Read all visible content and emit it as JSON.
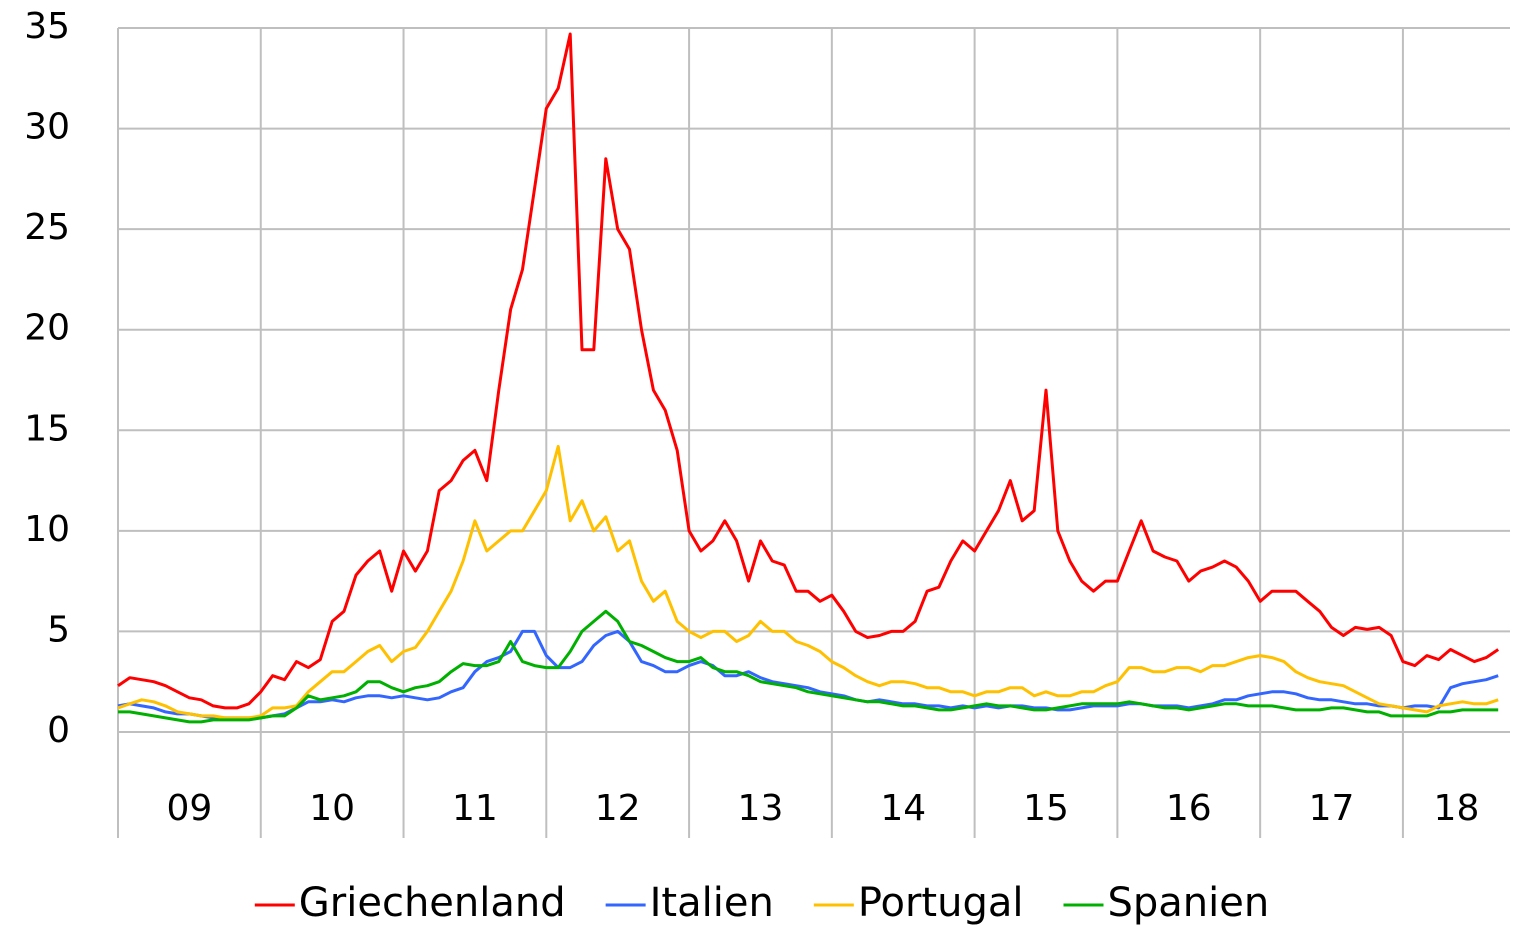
{
  "chart_data": {
    "type": "line",
    "x": [
      2009,
      2009.083,
      2009.167,
      2009.25,
      2009.333,
      2009.417,
      2009.5,
      2009.583,
      2009.667,
      2009.75,
      2009.833,
      2009.917,
      2010,
      2010.083,
      2010.167,
      2010.25,
      2010.333,
      2010.417,
      2010.5,
      2010.583,
      2010.667,
      2010.75,
      2010.833,
      2010.917,
      2011,
      2011.083,
      2011.167,
      2011.25,
      2011.333,
      2011.417,
      2011.5,
      2011.583,
      2011.667,
      2011.75,
      2011.833,
      2011.917,
      2012,
      2012.083,
      2012.167,
      2012.25,
      2012.333,
      2012.417,
      2012.5,
      2012.583,
      2012.667,
      2012.75,
      2012.833,
      2012.917,
      2013,
      2013.083,
      2013.167,
      2013.25,
      2013.333,
      2013.417,
      2013.5,
      2013.583,
      2013.667,
      2013.75,
      2013.833,
      2013.917,
      2014,
      2014.083,
      2014.167,
      2014.25,
      2014.333,
      2014.417,
      2014.5,
      2014.583,
      2014.667,
      2014.75,
      2014.833,
      2014.917,
      2015,
      2015.083,
      2015.167,
      2015.25,
      2015.333,
      2015.417,
      2015.5,
      2015.583,
      2015.667,
      2015.75,
      2015.833,
      2015.917,
      2016,
      2016.083,
      2016.167,
      2016.25,
      2016.333,
      2016.417,
      2016.5,
      2016.583,
      2016.667,
      2016.75,
      2016.833,
      2016.917,
      2017,
      2017.083,
      2017.167,
      2017.25,
      2017.333,
      2017.417,
      2017.5,
      2017.583,
      2017.667,
      2017.75,
      2017.833,
      2017.917,
      2018,
      2018.083,
      2018.167,
      2018.25,
      2018.333,
      2018.417,
      2018.5,
      2018.583,
      2018.667
    ],
    "series": [
      {
        "name": "Griechenland",
        "color": "#ff0000",
        "values": [
          2.3,
          2.7,
          2.6,
          2.5,
          2.3,
          2.0,
          1.7,
          1.6,
          1.3,
          1.2,
          1.2,
          1.4,
          2.0,
          2.8,
          2.6,
          3.5,
          3.2,
          3.6,
          5.5,
          6.0,
          7.8,
          8.5,
          9.0,
          7.0,
          9.0,
          8.0,
          9.0,
          12.0,
          12.5,
          13.5,
          14.0,
          12.5,
          17.0,
          21.0,
          23.0,
          27.0,
          31.0,
          32.0,
          34.7,
          19.0,
          19.0,
          28.5,
          25.0,
          24.0,
          20.0,
          17.0,
          16.0,
          14.0,
          10.0,
          9.0,
          9.5,
          10.5,
          9.5,
          7.5,
          9.5,
          8.5,
          8.3,
          7.0,
          7.0,
          6.5,
          6.8,
          6.0,
          5.0,
          4.7,
          4.8,
          5.0,
          5.0,
          5.5,
          7.0,
          7.2,
          8.5,
          9.5,
          9.0,
          10.0,
          11.0,
          12.5,
          10.5,
          11.0,
          17.0,
          10.0,
          8.5,
          7.5,
          7.0,
          7.5,
          7.5,
          9.0,
          10.5,
          9.0,
          8.7,
          8.5,
          7.5,
          8.0,
          8.2,
          8.5,
          8.2,
          7.5,
          6.5,
          7.0,
          7.0,
          7.0,
          6.5,
          6.0,
          5.2,
          4.8,
          5.2,
          5.1,
          5.2,
          4.8,
          3.5,
          3.3,
          3.8,
          3.6,
          4.1,
          3.8,
          3.5,
          3.7,
          4.1
        ]
      },
      {
        "name": "Italien",
        "color": "#3366ff",
        "values": [
          1.3,
          1.4,
          1.3,
          1.2,
          1.0,
          0.9,
          0.9,
          0.8,
          0.7,
          0.7,
          0.7,
          0.7,
          0.7,
          0.8,
          0.9,
          1.2,
          1.5,
          1.5,
          1.6,
          1.5,
          1.7,
          1.8,
          1.8,
          1.7,
          1.8,
          1.7,
          1.6,
          1.7,
          2.0,
          2.2,
          3.0,
          3.5,
          3.7,
          4.0,
          5.0,
          5.0,
          3.8,
          3.2,
          3.2,
          3.5,
          4.3,
          4.8,
          5.0,
          4.5,
          3.5,
          3.3,
          3.0,
          3.0,
          3.3,
          3.5,
          3.3,
          2.8,
          2.8,
          3.0,
          2.7,
          2.5,
          2.4,
          2.3,
          2.2,
          2.0,
          1.9,
          1.8,
          1.6,
          1.5,
          1.6,
          1.5,
          1.4,
          1.4,
          1.3,
          1.3,
          1.2,
          1.3,
          1.2,
          1.3,
          1.2,
          1.3,
          1.3,
          1.2,
          1.2,
          1.1,
          1.1,
          1.2,
          1.3,
          1.3,
          1.3,
          1.4,
          1.4,
          1.3,
          1.3,
          1.3,
          1.2,
          1.3,
          1.4,
          1.6,
          1.6,
          1.8,
          1.9,
          2.0,
          2.0,
          1.9,
          1.7,
          1.6,
          1.6,
          1.5,
          1.4,
          1.4,
          1.3,
          1.3,
          1.2,
          1.3,
          1.3,
          1.2,
          2.2,
          2.4,
          2.5,
          2.6,
          2.8
        ]
      },
      {
        "name": "Portugal",
        "color": "#ffc000",
        "values": [
          1.2,
          1.4,
          1.6,
          1.5,
          1.3,
          1.0,
          0.9,
          0.8,
          0.8,
          0.7,
          0.7,
          0.7,
          0.8,
          1.2,
          1.2,
          1.3,
          2.0,
          2.5,
          3.0,
          3.0,
          3.5,
          4.0,
          4.3,
          3.5,
          4.0,
          4.2,
          5.0,
          6.0,
          7.0,
          8.5,
          10.5,
          9.0,
          9.5,
          10.0,
          10.0,
          11.0,
          12.0,
          14.2,
          10.5,
          11.5,
          10.0,
          10.7,
          9.0,
          9.5,
          7.5,
          6.5,
          7.0,
          5.5,
          5.0,
          4.7,
          5.0,
          5.0,
          4.5,
          4.8,
          5.5,
          5.0,
          5.0,
          4.5,
          4.3,
          4.0,
          3.5,
          3.2,
          2.8,
          2.5,
          2.3,
          2.5,
          2.5,
          2.4,
          2.2,
          2.2,
          2.0,
          2.0,
          1.8,
          2.0,
          2.0,
          2.2,
          2.2,
          1.8,
          2.0,
          1.8,
          1.8,
          2.0,
          2.0,
          2.3,
          2.5,
          3.2,
          3.2,
          3.0,
          3.0,
          3.2,
          3.2,
          3.0,
          3.3,
          3.3,
          3.5,
          3.7,
          3.8,
          3.7,
          3.5,
          3.0,
          2.7,
          2.5,
          2.4,
          2.3,
          2.0,
          1.7,
          1.4,
          1.3,
          1.2,
          1.1,
          1.0,
          1.3,
          1.4,
          1.5,
          1.4,
          1.4,
          1.6
        ]
      },
      {
        "name": "Spanien",
        "color": "#00b000",
        "values": [
          1.0,
          1.0,
          0.9,
          0.8,
          0.7,
          0.6,
          0.5,
          0.5,
          0.6,
          0.6,
          0.6,
          0.6,
          0.7,
          0.8,
          0.8,
          1.2,
          1.8,
          1.6,
          1.7,
          1.8,
          2.0,
          2.5,
          2.5,
          2.2,
          2.0,
          2.2,
          2.3,
          2.5,
          3.0,
          3.4,
          3.3,
          3.3,
          3.5,
          4.5,
          3.5,
          3.3,
          3.2,
          3.2,
          4.0,
          5.0,
          5.5,
          6.0,
          5.5,
          4.5,
          4.3,
          4.0,
          3.7,
          3.5,
          3.5,
          3.7,
          3.2,
          3.0,
          3.0,
          2.8,
          2.5,
          2.4,
          2.3,
          2.2,
          2.0,
          1.9,
          1.8,
          1.7,
          1.6,
          1.5,
          1.5,
          1.4,
          1.3,
          1.3,
          1.2,
          1.1,
          1.1,
          1.2,
          1.3,
          1.4,
          1.3,
          1.3,
          1.2,
          1.1,
          1.1,
          1.2,
          1.3,
          1.4,
          1.4,
          1.4,
          1.4,
          1.5,
          1.4,
          1.3,
          1.2,
          1.2,
          1.1,
          1.2,
          1.3,
          1.4,
          1.4,
          1.3,
          1.3,
          1.3,
          1.2,
          1.1,
          1.1,
          1.1,
          1.2,
          1.2,
          1.1,
          1.0,
          1.0,
          0.8,
          0.8,
          0.8,
          0.8,
          1.0,
          1.0,
          1.1,
          1.1,
          1.1,
          1.1
        ]
      }
    ],
    "xlim": [
      2009,
      2018.75
    ],
    "xticks": [
      {
        "value": 2009,
        "label": "09"
      },
      {
        "value": 2010,
        "label": "10"
      },
      {
        "value": 2011,
        "label": "11"
      },
      {
        "value": 2012,
        "label": "12"
      },
      {
        "value": 2013,
        "label": "13"
      },
      {
        "value": 2014,
        "label": "14"
      },
      {
        "value": 2015,
        "label": "15"
      },
      {
        "value": 2016,
        "label": "16"
      },
      {
        "value": 2017,
        "label": "17"
      },
      {
        "value": 2018,
        "label": "18"
      }
    ],
    "ylim": [
      0,
      35
    ],
    "yticks": [
      0,
      5,
      10,
      15,
      20,
      25,
      30,
      35
    ],
    "grid": true,
    "legend": "bottom"
  }
}
